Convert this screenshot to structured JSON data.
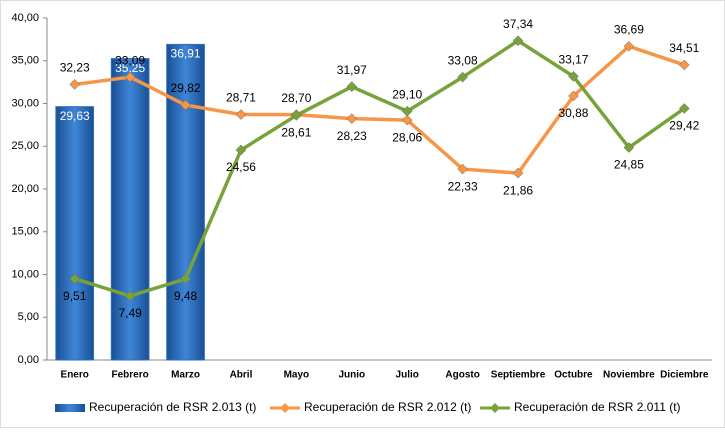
{
  "chart_data": {
    "type": "combo",
    "categories": [
      "Enero",
      "Febrero",
      "Marzo",
      "Abril",
      "Mayo",
      "Junio",
      "Julio",
      "Agosto",
      "Septiembre",
      "Octubre",
      "Noviembre",
      "Diciembre"
    ],
    "ylim": [
      0,
      40
    ],
    "yticks": [
      {
        "value": 0,
        "label": "0,00"
      },
      {
        "value": 5,
        "label": "5,00"
      },
      {
        "value": 10,
        "label": "10,00"
      },
      {
        "value": 15,
        "label": "15,00"
      },
      {
        "value": 20,
        "label": "20,00"
      },
      {
        "value": 25,
        "label": "25,00"
      },
      {
        "value": 30,
        "label": "30,00"
      },
      {
        "value": 35,
        "label": "35,00"
      },
      {
        "value": 40,
        "label": "40,00"
      }
    ],
    "legend": "bottom",
    "series": [
      {
        "name": "Recuperación de RSR 2.013 (t)",
        "type": "bar",
        "color": "#2c6fbf",
        "values": [
          29.63,
          35.25,
          36.91,
          null,
          null,
          null,
          null,
          null,
          null,
          null,
          null,
          null
        ],
        "value_labels": [
          "29,63",
          "35,25",
          "36,91",
          null,
          null,
          null,
          null,
          null,
          null,
          null,
          null,
          null
        ]
      },
      {
        "name": "Recuperación de RSR 2.012 (t)",
        "type": "line",
        "color": "#f79646",
        "values": [
          32.23,
          33.09,
          29.82,
          28.71,
          28.7,
          28.23,
          28.06,
          22.33,
          21.86,
          30.88,
          36.69,
          34.51
        ],
        "value_labels": [
          "32,23",
          "33,09",
          "29,82",
          "28,71",
          "28,70",
          "28,23",
          "28,06",
          "22,33",
          "21,86",
          "30,88",
          "36,69",
          "34,51"
        ]
      },
      {
        "name": "Recuperación de RSR 2.011 (t)",
        "type": "line",
        "color": "#77a33a",
        "values": [
          9.51,
          7.49,
          9.48,
          24.56,
          28.61,
          31.97,
          29.1,
          33.08,
          37.34,
          33.17,
          24.85,
          29.42
        ],
        "value_labels": [
          "9,51",
          "7,49",
          "9,48",
          "24,56",
          "28,61",
          "31,97",
          "29,10",
          "33,08",
          "37,34",
          "33,17",
          "24,85",
          "29,42"
        ]
      }
    ]
  }
}
